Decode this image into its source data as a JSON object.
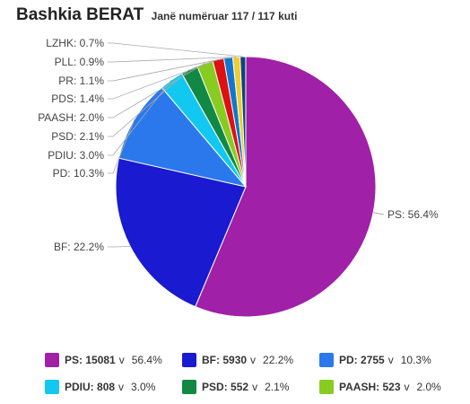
{
  "header": {
    "title": "Bashkia BERAT",
    "subtitle": "Janë numëruar 117 / 117 kuti"
  },
  "chart_data": {
    "type": "pie",
    "title": "Bashkia BERAT",
    "subtitle": "Janë numëruar 117 / 117 kuti",
    "slices": [
      {
        "name": "PS",
        "percent": 56.4,
        "label": "PS: 56.4%",
        "color": "#a020a8"
      },
      {
        "name": "BF",
        "percent": 22.2,
        "label": "BF: 22.2%",
        "color": "#1a1ad0"
      },
      {
        "name": "PD",
        "percent": 10.3,
        "label": "PD: 10.3%",
        "color": "#2a78ec"
      },
      {
        "name": "PDIU",
        "percent": 3.0,
        "label": "PDIU: 3.0%",
        "color": "#12c8f0"
      },
      {
        "name": "PSD",
        "percent": 2.1,
        "label": "PSD: 2.1%",
        "color": "#118844"
      },
      {
        "name": "PAASH",
        "percent": 2.0,
        "label": "PAASH: 2.0%",
        "color": "#88cc22"
      },
      {
        "name": "PDS",
        "percent": 1.4,
        "label": "PDS: 1.4%",
        "color": "#dd1111"
      },
      {
        "name": "PR",
        "percent": 1.1,
        "label": "PR: 1.1%",
        "color": "#1177cc"
      },
      {
        "name": "PLL",
        "percent": 0.9,
        "label": "PLL: 0.9%",
        "color": "#eecc33"
      },
      {
        "name": "LZHK",
        "percent": 0.7,
        "label": "LZHK: 0.7%",
        "color": "#114477"
      }
    ]
  },
  "legend": {
    "rows": [
      [
        {
          "name": "PS",
          "count": "15081",
          "v": "v",
          "pct": "56.4%",
          "color": "#a020a8"
        },
        {
          "name": "BF",
          "count": "5930",
          "v": "v",
          "pct": "22.2%",
          "color": "#1a1ad0"
        },
        {
          "name": "PD",
          "count": "2755",
          "v": "v",
          "pct": "10.3%",
          "color": "#2a78ec"
        }
      ],
      [
        {
          "name": "PDIU",
          "count": "808",
          "v": "v",
          "pct": "3.0%",
          "color": "#12c8f0"
        },
        {
          "name": "PSD",
          "count": "552",
          "v": "v",
          "pct": "2.1%",
          "color": "#118844"
        },
        {
          "name": "PAASH",
          "count": "523",
          "v": "v",
          "pct": "2.0%",
          "color": "#88cc22"
        }
      ]
    ]
  }
}
